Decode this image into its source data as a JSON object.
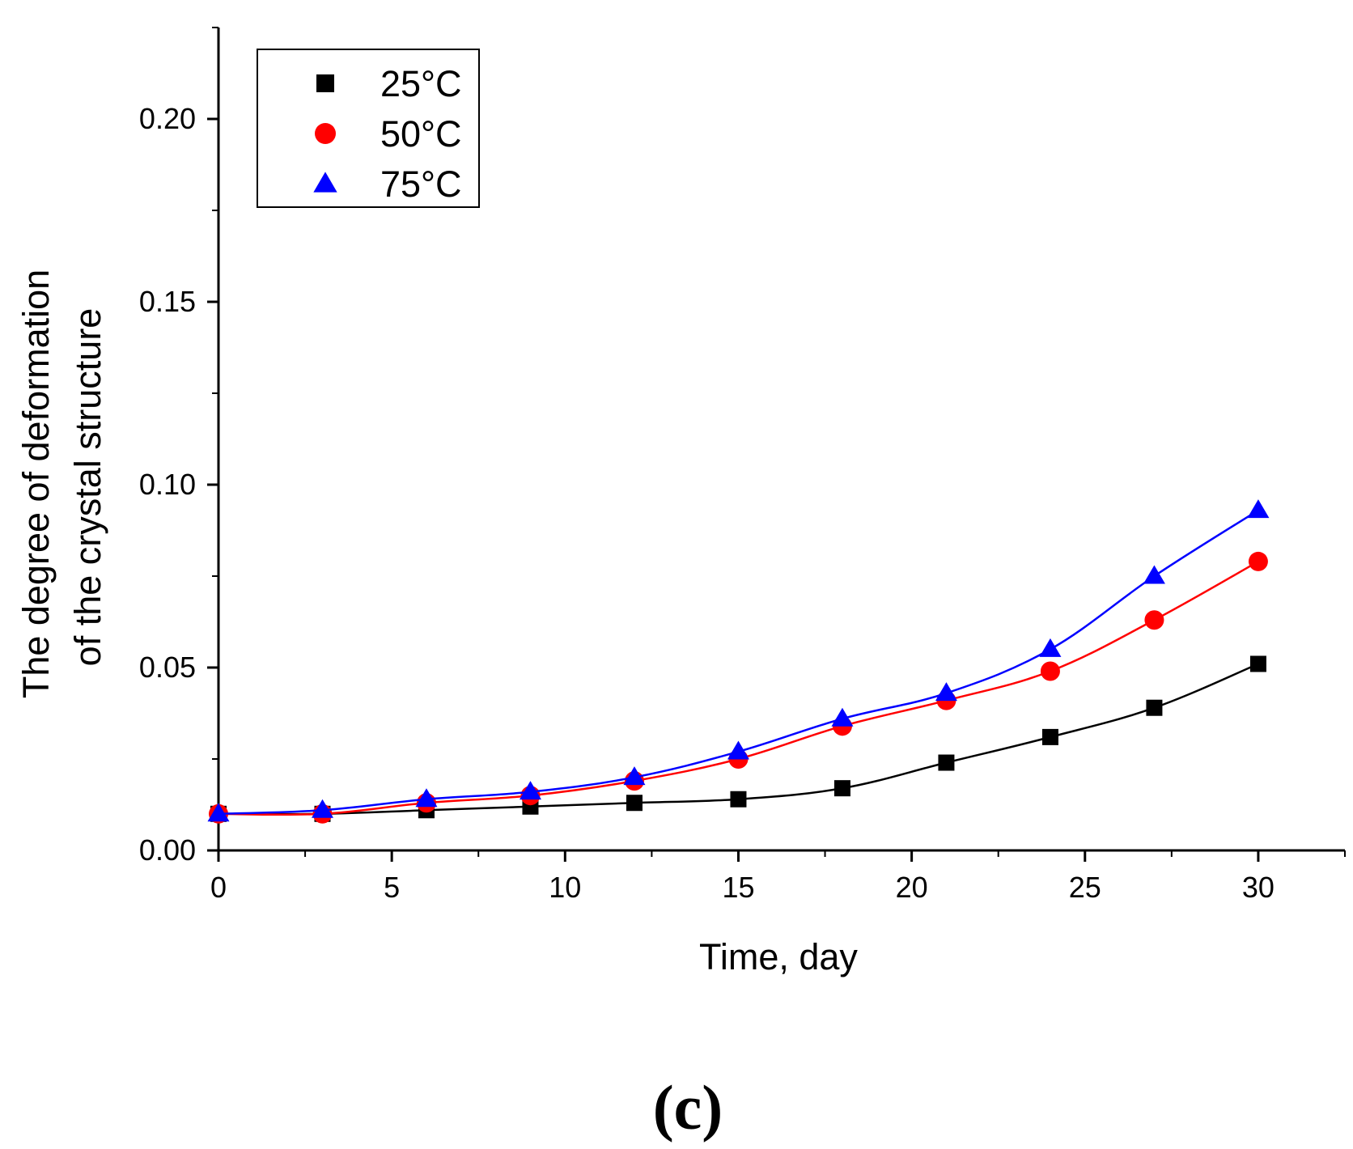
{
  "chart_data": {
    "type": "scatter",
    "title": "",
    "xlabel": "Time, day",
    "ylabel_lines": [
      "The degree of deformation",
      "of the crystal structure"
    ],
    "xlim": [
      0,
      32.5
    ],
    "ylim": [
      0,
      0.225
    ],
    "x_ticks": [
      0,
      5,
      10,
      15,
      20,
      25,
      30
    ],
    "x_minor_ticks": [
      2.5,
      7.5,
      12.5,
      17.5,
      22.5,
      27.5,
      32.5
    ],
    "x_tick_labels": [
      "0",
      "5",
      "10",
      "15",
      "20",
      "25",
      "30"
    ],
    "y_ticks": [
      0.0,
      0.05,
      0.1,
      0.15,
      0.2
    ],
    "y_minor_ticks": [
      0.025,
      0.075,
      0.125,
      0.175,
      0.225
    ],
    "y_tick_labels": [
      "0.00",
      "0.05",
      "0.10",
      "0.15",
      "0.20"
    ],
    "grid": false,
    "legend_position": "top-left",
    "x": [
      0,
      3,
      6,
      9,
      12,
      15,
      18,
      21,
      24,
      27,
      30
    ],
    "series": [
      {
        "name": "25°C",
        "marker": "square",
        "color": "#000000",
        "values": [
          0.01,
          0.01,
          0.011,
          0.012,
          0.013,
          0.014,
          0.017,
          0.024,
          0.031,
          0.039,
          0.051
        ]
      },
      {
        "name": "50°C",
        "marker": "circle",
        "color": "#ff0000",
        "values": [
          0.01,
          0.01,
          0.013,
          0.015,
          0.019,
          0.025,
          0.034,
          0.041,
          0.049,
          0.063,
          0.079
        ]
      },
      {
        "name": "75°C",
        "marker": "triangle",
        "color": "#0000ff",
        "values": [
          0.01,
          0.011,
          0.014,
          0.016,
          0.02,
          0.027,
          0.036,
          0.043,
          0.055,
          0.075,
          0.093
        ]
      }
    ]
  },
  "panel_label": "(c)"
}
